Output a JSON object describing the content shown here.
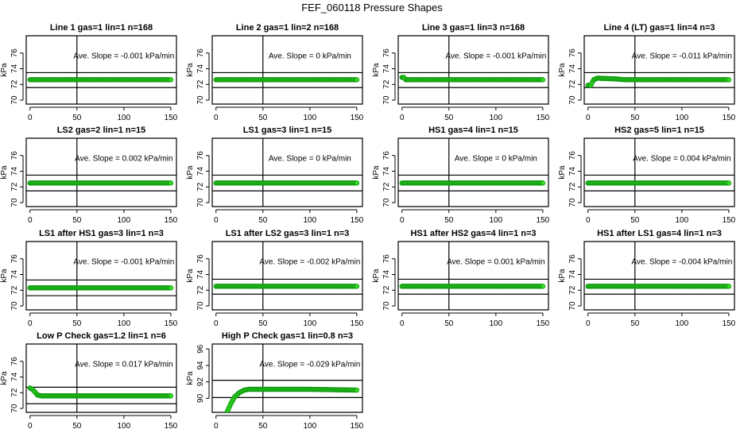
{
  "title": "FEF_060118  Pressure Shapes",
  "colors": {
    "marker_fill": "#33dd22",
    "marker_stroke": "#119911",
    "lines": "#000000"
  },
  "chart_data": [
    {
      "type": "scatter",
      "title": "Line 1 gas=1 lin=1 n=168",
      "slope_text": "Ave. Slope =  -0.001  kPa/min",
      "ylabel": "kPa",
      "xticks": [
        0,
        50,
        100,
        150
      ],
      "yticks": [
        70,
        72,
        74,
        76
      ],
      "xlim": [
        -4,
        156
      ],
      "ylim": [
        69.5,
        78.2
      ],
      "vline": 50,
      "hlines": [
        73.5,
        71.6
      ],
      "points": [
        [
          0,
          72.6
        ],
        [
          150,
          72.6
        ]
      ]
    },
    {
      "type": "scatter",
      "title": "Line 2 gas=1 lin=2 n=168",
      "slope_text": "Ave. Slope =  0  kPa/min",
      "ylabel": "kPa",
      "xticks": [
        0,
        50,
        100,
        150
      ],
      "yticks": [
        70,
        72,
        74,
        76
      ],
      "xlim": [
        -4,
        156
      ],
      "ylim": [
        69.5,
        78.2
      ],
      "vline": 50,
      "hlines": [
        73.5,
        71.6
      ],
      "points": [
        [
          0,
          72.6
        ],
        [
          150,
          72.6
        ]
      ]
    },
    {
      "type": "scatter",
      "title": "Line 3 gas=1 lin=3 n=168",
      "slope_text": "Ave. Slope =  -0.001  kPa/min",
      "ylabel": "kPa",
      "xticks": [
        0,
        50,
        100,
        150
      ],
      "yticks": [
        70,
        72,
        74,
        76
      ],
      "xlim": [
        -4,
        156
      ],
      "ylim": [
        69.5,
        78.2
      ],
      "vline": 50,
      "hlines": [
        73.5,
        71.6
      ],
      "points": [
        [
          0,
          72.9
        ],
        [
          2,
          72.9
        ],
        [
          4,
          72.6
        ],
        [
          150,
          72.6
        ]
      ]
    },
    {
      "type": "scatter",
      "title": "Line 4 (LT) gas=1 lin=4 n=3",
      "slope_text": "Ave. Slope =  -0.011  kPa/min",
      "ylabel": "kPa",
      "xticks": [
        0,
        50,
        100,
        150
      ],
      "yticks": [
        70,
        72,
        74,
        76
      ],
      "xlim": [
        -4,
        156
      ],
      "ylim": [
        69.5,
        78.2
      ],
      "vline": 50,
      "hlines": [
        73.5,
        71.6
      ],
      "points": [
        [
          0,
          71.9
        ],
        [
          3,
          71.9
        ],
        [
          6,
          72.6
        ],
        [
          10,
          72.8
        ],
        [
          30,
          72.7
        ],
        [
          40,
          72.6
        ],
        [
          150,
          72.6
        ]
      ]
    },
    {
      "type": "scatter",
      "title": "LS2 gas=2 lin=1 n=15",
      "slope_text": "Ave. Slope =  0.002  kPa/min",
      "ylabel": "kPa",
      "xticks": [
        0,
        50,
        100,
        150
      ],
      "yticks": [
        70,
        72,
        74,
        76
      ],
      "xlim": [
        -4,
        156
      ],
      "ylim": [
        69.5,
        78.2
      ],
      "vline": 50,
      "hlines": [
        73.5,
        71.5
      ],
      "points": [
        [
          0,
          72.5
        ],
        [
          150,
          72.5
        ]
      ]
    },
    {
      "type": "scatter",
      "title": "LS1 gas=3 lin=1 n=15",
      "slope_text": "Ave. Slope =  0  kPa/min",
      "ylabel": "kPa",
      "xticks": [
        0,
        50,
        100,
        150
      ],
      "yticks": [
        70,
        72,
        74,
        76
      ],
      "xlim": [
        -4,
        156
      ],
      "ylim": [
        69.5,
        78.2
      ],
      "vline": 50,
      "hlines": [
        73.5,
        71.5
      ],
      "points": [
        [
          0,
          72.5
        ],
        [
          150,
          72.5
        ]
      ]
    },
    {
      "type": "scatter",
      "title": "HS1 gas=4 lin=1 n=15",
      "slope_text": "Ave. Slope =  0  kPa/min",
      "ylabel": "kPa",
      "xticks": [
        0,
        50,
        100,
        150
      ],
      "yticks": [
        70,
        72,
        74,
        76
      ],
      "xlim": [
        -4,
        156
      ],
      "ylim": [
        69.5,
        78.2
      ],
      "vline": 50,
      "hlines": [
        73.5,
        71.5
      ],
      "points": [
        [
          0,
          72.5
        ],
        [
          150,
          72.5
        ]
      ]
    },
    {
      "type": "scatter",
      "title": "HS2 gas=5 lin=1 n=15",
      "slope_text": "Ave. Slope =  0.004  kPa/min",
      "ylabel": "kPa",
      "xticks": [
        0,
        50,
        100,
        150
      ],
      "yticks": [
        70,
        72,
        74,
        76
      ],
      "xlim": [
        -4,
        156
      ],
      "ylim": [
        69.5,
        78.2
      ],
      "vline": 50,
      "hlines": [
        73.5,
        71.5
      ],
      "points": [
        [
          0,
          72.5
        ],
        [
          150,
          72.5
        ]
      ]
    },
    {
      "type": "scatter",
      "title": "LS1 after HS1 gas=3 lin=1 n=3",
      "slope_text": "Ave. Slope =  -0.001  kPa/min",
      "ylabel": "kPa",
      "xticks": [
        0,
        50,
        100,
        150
      ],
      "yticks": [
        70,
        72,
        74,
        76
      ],
      "xlim": [
        -4,
        156
      ],
      "ylim": [
        69.5,
        78.2
      ],
      "vline": 50,
      "hlines": [
        73.3,
        71.3
      ],
      "points": [
        [
          0,
          72.3
        ],
        [
          150,
          72.3
        ]
      ]
    },
    {
      "type": "scatter",
      "title": "LS1 after LS2 gas=3 lin=1 n=3",
      "slope_text": "Ave. Slope =  -0.002  kPa/min",
      "ylabel": "kPa",
      "xticks": [
        0,
        50,
        100,
        150
      ],
      "yticks": [
        70,
        72,
        74,
        76
      ],
      "xlim": [
        -4,
        156
      ],
      "ylim": [
        69.5,
        78.2
      ],
      "vline": 50,
      "hlines": [
        73.4,
        71.5
      ],
      "points": [
        [
          0,
          72.5
        ],
        [
          150,
          72.5
        ]
      ]
    },
    {
      "type": "scatter",
      "title": "HS1 after HS2 gas=4 lin=1 n=3",
      "slope_text": "Ave. Slope =  0.001  kPa/min",
      "ylabel": "kPa",
      "xticks": [
        0,
        50,
        100,
        150
      ],
      "yticks": [
        70,
        72,
        74,
        76
      ],
      "xlim": [
        -4,
        156
      ],
      "ylim": [
        69.5,
        78.2
      ],
      "vline": 50,
      "hlines": [
        73.4,
        71.5
      ],
      "points": [
        [
          0,
          72.5
        ],
        [
          150,
          72.5
        ]
      ]
    },
    {
      "type": "scatter",
      "title": "HS1 after LS1 gas=4 lin=1 n=3",
      "slope_text": "Ave. Slope =  -0.004  kPa/min",
      "ylabel": "kPa",
      "xticks": [
        0,
        50,
        100,
        150
      ],
      "yticks": [
        70,
        72,
        74,
        76
      ],
      "xlim": [
        -4,
        156
      ],
      "ylim": [
        69.5,
        78.2
      ],
      "vline": 50,
      "hlines": [
        73.4,
        71.5
      ],
      "points": [
        [
          0,
          72.5
        ],
        [
          150,
          72.5
        ]
      ]
    },
    {
      "type": "scatter",
      "title": "Low P Check gas=1.2 lin=1 n=6",
      "slope_text": "Ave. Slope =  0.017  kPa/min",
      "ylabel": "kPa",
      "xticks": [
        0,
        50,
        100,
        150
      ],
      "yticks": [
        70,
        72,
        74,
        76
      ],
      "xlim": [
        -4,
        156
      ],
      "ylim": [
        69.5,
        78.2
      ],
      "vline": 50,
      "hlines": [
        72.7,
        70.6
      ],
      "points": [
        [
          0,
          72.6
        ],
        [
          3,
          72.4
        ],
        [
          8,
          71.7
        ],
        [
          12,
          71.6
        ],
        [
          150,
          71.6
        ]
      ]
    },
    {
      "type": "scatter",
      "title": "High P Check gas=1 lin=0.8 n=3",
      "slope_text": "Ave. Slope =  -0.029  kPa/min",
      "ylabel": "kPa",
      "xticks": [
        0,
        50,
        100,
        150
      ],
      "yticks": [
        90,
        92,
        94,
        96
      ],
      "xlim": [
        -4,
        156
      ],
      "ylim": [
        88.3,
        96.6
      ],
      "vline": 50,
      "hlines": [
        92.2,
        90.1
      ],
      "points": [
        [
          12,
          88.4
        ],
        [
          16,
          89.4
        ],
        [
          20,
          90.2
        ],
        [
          25,
          90.7
        ],
        [
          30,
          91.0
        ],
        [
          35,
          91.1
        ],
        [
          100,
          91.1
        ],
        [
          150,
          91.0
        ]
      ]
    }
  ]
}
